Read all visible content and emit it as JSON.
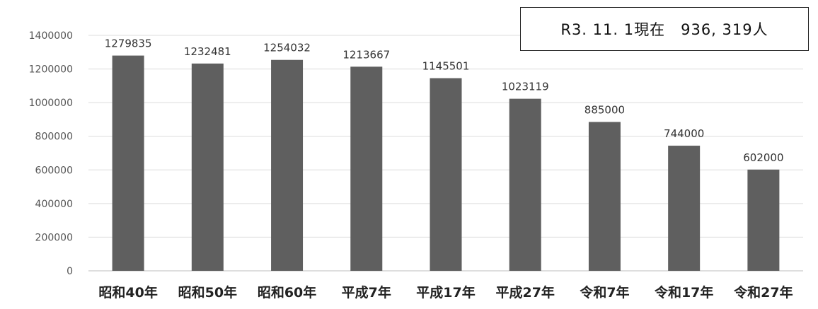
{
  "chart_data": {
    "type": "bar",
    "categories": [
      "昭和40年",
      "昭和50年",
      "昭和60年",
      "平成7年",
      "平成17年",
      "平成27年",
      "令和7年",
      "令和17年",
      "令和27年"
    ],
    "values": [
      1279835,
      1232481,
      1254032,
      1213667,
      1145501,
      1023119,
      885000,
      744000,
      602000
    ],
    "value_labels": [
      "1279835",
      "1232481",
      "1254032",
      "1213667",
      "1145501",
      "1023119",
      "885000",
      "744000",
      "602000"
    ],
    "y_ticks": [
      0,
      200000,
      400000,
      600000,
      800000,
      1000000,
      1200000,
      1400000
    ],
    "y_tick_labels": [
      "0",
      "200000",
      "400000",
      "600000",
      "800000",
      "1000000",
      "1200000",
      "1400000"
    ],
    "ylim": [
      0,
      1400000
    ],
    "grid": true,
    "bar_color": "#5f5f5f",
    "annotation": "R3. 11. 1現在　936, 319人"
  }
}
